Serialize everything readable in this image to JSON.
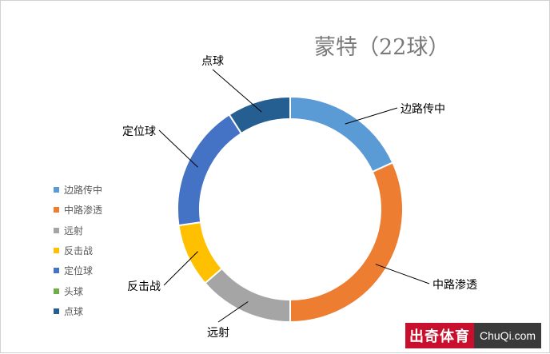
{
  "chart_data": {
    "type": "pie",
    "title": "蒙特（22球）",
    "categories": [
      "边路传中",
      "中路渗透",
      "远射",
      "反击战",
      "定位球",
      "头球",
      "点球"
    ],
    "values": [
      4,
      7,
      3,
      2,
      4,
      0,
      2
    ],
    "colors": [
      "#5b9bd5",
      "#ed7d31",
      "#a5a5a5",
      "#ffc000",
      "#4472c4",
      "#70ad47",
      "#255e91"
    ],
    "legend_position": "left",
    "donut": true
  },
  "watermark": {
    "left": "出奇体育",
    "right": "ChuQi.com"
  }
}
